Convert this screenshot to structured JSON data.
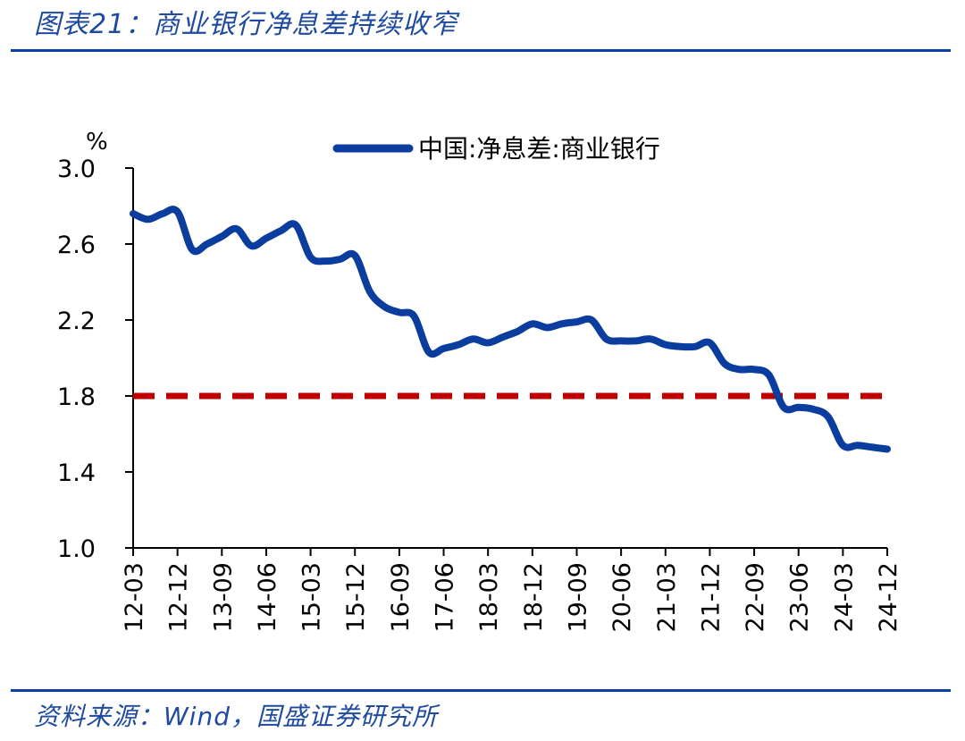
{
  "header": {
    "title": "图表21：商业银行净息差持续收窄"
  },
  "footer": {
    "source": "资料来源：Wind，国盛证券研究所"
  },
  "chart_data": {
    "type": "line",
    "title": "图表21：商业银行净息差持续收窄",
    "ylabel": "%",
    "xlabel": "",
    "ylim": [
      1.0,
      3.0
    ],
    "yticks": [
      "1.0",
      "1.4",
      "1.8",
      "2.2",
      "2.6",
      "3.0"
    ],
    "xticks": [
      "12-03",
      "12-12",
      "13-09",
      "14-06",
      "15-03",
      "15-12",
      "16-09",
      "17-06",
      "18-03",
      "18-12",
      "19-09",
      "20-06",
      "21-03",
      "21-12",
      "22-09",
      "23-06",
      "24-03",
      "24-12"
    ],
    "x": [
      "12-03",
      "12-06",
      "12-09",
      "12-12",
      "13-03",
      "13-06",
      "13-09",
      "13-12",
      "14-03",
      "14-06",
      "14-09",
      "14-12",
      "15-03",
      "15-06",
      "15-09",
      "15-12",
      "16-03",
      "16-06",
      "16-09",
      "16-12",
      "17-03",
      "17-06",
      "17-09",
      "17-12",
      "18-03",
      "18-06",
      "18-09",
      "18-12",
      "19-03",
      "19-06",
      "19-09",
      "19-12",
      "20-03",
      "20-06",
      "20-09",
      "20-12",
      "21-03",
      "21-06",
      "21-09",
      "21-12",
      "22-03",
      "22-06",
      "22-09",
      "22-12",
      "23-03",
      "23-06",
      "23-09",
      "23-12",
      "24-03",
      "24-06",
      "24-09",
      "24-12"
    ],
    "series": [
      {
        "name": "中国:净息差:商业银行",
        "color": "#0b3d9f",
        "values": [
          2.76,
          2.73,
          2.76,
          2.77,
          2.57,
          2.6,
          2.64,
          2.68,
          2.59,
          2.63,
          2.67,
          2.7,
          2.53,
          2.51,
          2.52,
          2.54,
          2.35,
          2.27,
          2.24,
          2.22,
          2.03,
          2.05,
          2.07,
          2.1,
          2.08,
          2.11,
          2.14,
          2.18,
          2.16,
          2.18,
          2.19,
          2.2,
          2.1,
          2.09,
          2.09,
          2.1,
          2.07,
          2.06,
          2.06,
          2.08,
          1.97,
          1.94,
          1.94,
          1.91,
          1.74,
          1.74,
          1.73,
          1.69,
          1.54,
          1.54,
          1.53,
          1.52
        ]
      }
    ],
    "reference_line": {
      "value": 1.8,
      "color": "#c00000",
      "style": "dashed"
    },
    "legend_position": "top-right",
    "grid": false
  }
}
